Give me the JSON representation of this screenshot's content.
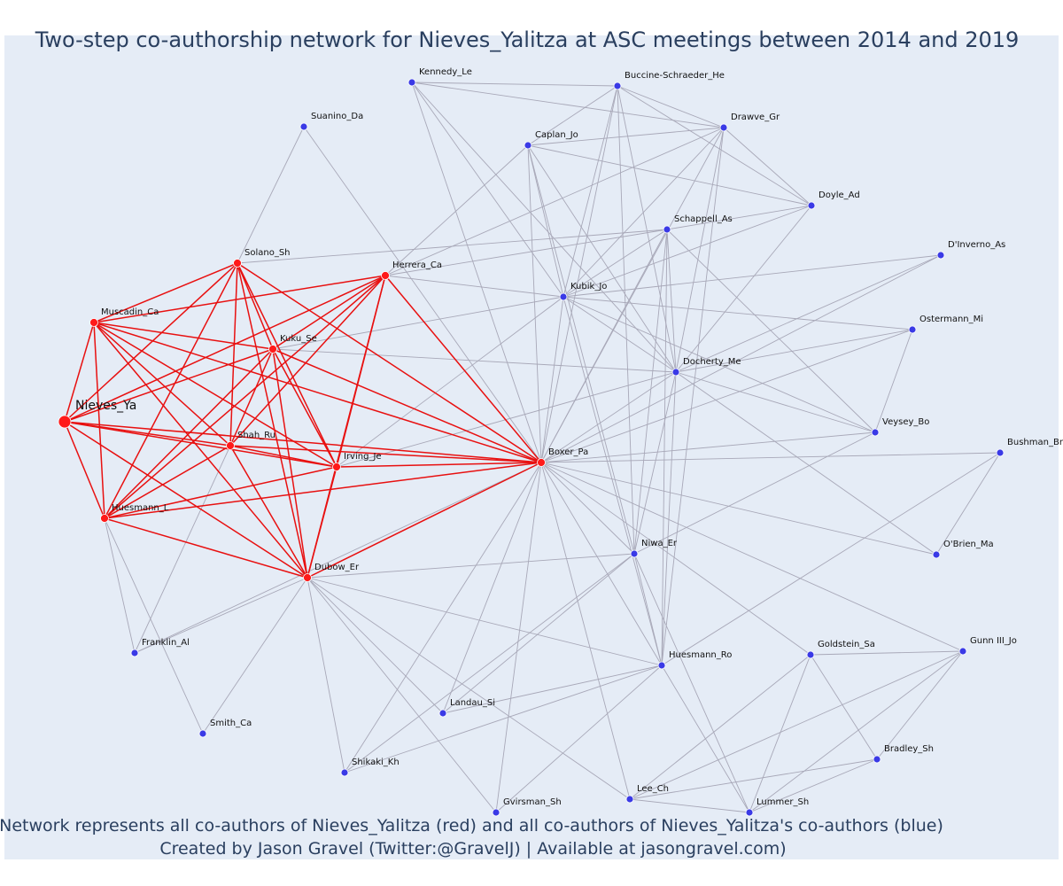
{
  "title": "Two-step co-authorship network for Nieves_Yalitza at ASC meetings between 2014 and 2019",
  "caption_line1": "Network represents all co-authors of Nieves_Yalitza (red) and all co-authors of Nieves_Yalitza's co-authors (blue)",
  "caption_line2": "Created by Jason Gravel (Twitter:@GravelJ) | Available at jasongravel.com)",
  "colors": {
    "background": "#e5ecf6",
    "title": "#2a3f5f",
    "red_node": "#ff1a1a",
    "red_edge": "#e81010",
    "blue_node": "#3a3ae6",
    "gray_edge": "#a8a8b8"
  },
  "focal": "Nieves_Ya",
  "red_nodes": [
    "Nieves_Ya",
    "Solano_Sh",
    "Herrera_Ca",
    "Muscadin_Ca",
    "Kuku_Se",
    "Shah_Ru",
    "Irving_Je",
    "Huesmann_L",
    "Dubow_Er",
    "Boxer_Pa"
  ],
  "blue_nodes": [
    "Kennedy_Le",
    "Buccine-Schraeder_He",
    "Suanino_Da",
    "Caplan_Jo",
    "Drawve_Gr",
    "Doyle_Ad",
    "Schappell_As",
    "D'Inverno_As",
    "Kubik_Jo",
    "Ostermann_Mi",
    "Docherty_Me",
    "Veysey_Bo",
    "Bushman_Br",
    "O'Brien_Ma",
    "Niwa_Er",
    "Goldstein_Sa",
    "Gunn III_Jo",
    "Huesmann_Ro",
    "Franklin_Al",
    "Landau_Si",
    "Smith_Ca",
    "Bradley_Sh",
    "Shikaki_Kh",
    "Lee_Ch",
    "Lummer_Sh",
    "Gvirsman_Sh"
  ],
  "red_edges": [
    [
      "Nieves_Ya",
      "Solano_Sh"
    ],
    [
      "Nieves_Ya",
      "Herrera_Ca"
    ],
    [
      "Nieves_Ya",
      "Muscadin_Ca"
    ],
    [
      "Nieves_Ya",
      "Kuku_Se"
    ],
    [
      "Nieves_Ya",
      "Shah_Ru"
    ],
    [
      "Nieves_Ya",
      "Irving_Je"
    ],
    [
      "Nieves_Ya",
      "Huesmann_L"
    ],
    [
      "Nieves_Ya",
      "Dubow_Er"
    ],
    [
      "Nieves_Ya",
      "Boxer_Pa"
    ],
    [
      "Solano_Sh",
      "Muscadin_Ca"
    ],
    [
      "Solano_Sh",
      "Kuku_Se"
    ],
    [
      "Solano_Sh",
      "Shah_Ru"
    ],
    [
      "Solano_Sh",
      "Irving_Je"
    ],
    [
      "Solano_Sh",
      "Huesmann_L"
    ],
    [
      "Solano_Sh",
      "Dubow_Er"
    ],
    [
      "Solano_Sh",
      "Boxer_Pa"
    ],
    [
      "Herrera_Ca",
      "Muscadin_Ca"
    ],
    [
      "Herrera_Ca",
      "Kuku_Se"
    ],
    [
      "Herrera_Ca",
      "Shah_Ru"
    ],
    [
      "Herrera_Ca",
      "Irving_Je"
    ],
    [
      "Herrera_Ca",
      "Huesmann_L"
    ],
    [
      "Herrera_Ca",
      "Dubow_Er"
    ],
    [
      "Herrera_Ca",
      "Boxer_Pa"
    ],
    [
      "Muscadin_Ca",
      "Kuku_Se"
    ],
    [
      "Muscadin_Ca",
      "Shah_Ru"
    ],
    [
      "Muscadin_Ca",
      "Irving_Je"
    ],
    [
      "Muscadin_Ca",
      "Huesmann_L"
    ],
    [
      "Muscadin_Ca",
      "Dubow_Er"
    ],
    [
      "Muscadin_Ca",
      "Boxer_Pa"
    ],
    [
      "Kuku_Se",
      "Shah_Ru"
    ],
    [
      "Kuku_Se",
      "Irving_Je"
    ],
    [
      "Kuku_Se",
      "Huesmann_L"
    ],
    [
      "Kuku_Se",
      "Dubow_Er"
    ],
    [
      "Kuku_Se",
      "Boxer_Pa"
    ],
    [
      "Shah_Ru",
      "Irving_Je"
    ],
    [
      "Shah_Ru",
      "Huesmann_L"
    ],
    [
      "Shah_Ru",
      "Dubow_Er"
    ],
    [
      "Shah_Ru",
      "Boxer_Pa"
    ],
    [
      "Irving_Je",
      "Huesmann_L"
    ],
    [
      "Irving_Je",
      "Dubow_Er"
    ],
    [
      "Irving_Je",
      "Boxer_Pa"
    ],
    [
      "Huesmann_L",
      "Dubow_Er"
    ],
    [
      "Huesmann_L",
      "Boxer_Pa"
    ],
    [
      "Dubow_Er",
      "Boxer_Pa"
    ]
  ],
  "gray_edges": [
    [
      "Suanino_Da",
      "Solano_Sh"
    ],
    [
      "Suanino_Da",
      "Boxer_Pa"
    ],
    [
      "Solano_Sh",
      "Schappell_As"
    ],
    [
      "Kennedy_Le",
      "Buccine-Schraeder_He"
    ],
    [
      "Kennedy_Le",
      "Drawve_Gr"
    ],
    [
      "Kennedy_Le",
      "Kubik_Jo"
    ],
    [
      "Kennedy_Le",
      "Boxer_Pa"
    ],
    [
      "Kennedy_Le",
      "Docherty_Me"
    ],
    [
      "Buccine-Schraeder_He",
      "Caplan_Jo"
    ],
    [
      "Buccine-Schraeder_He",
      "Drawve_Gr"
    ],
    [
      "Buccine-Schraeder_He",
      "Doyle_Ad"
    ],
    [
      "Buccine-Schraeder_He",
      "Kubik_Jo"
    ],
    [
      "Buccine-Schraeder_He",
      "Boxer_Pa"
    ],
    [
      "Buccine-Schraeder_He",
      "Docherty_Me"
    ],
    [
      "Buccine-Schraeder_He",
      "Niwa_Er"
    ],
    [
      "Caplan_Jo",
      "Drawve_Gr"
    ],
    [
      "Caplan_Jo",
      "Doyle_Ad"
    ],
    [
      "Caplan_Jo",
      "Herrera_Ca"
    ],
    [
      "Caplan_Jo",
      "Kubik_Jo"
    ],
    [
      "Caplan_Jo",
      "Boxer_Pa"
    ],
    [
      "Caplan_Jo",
      "Docherty_Me"
    ],
    [
      "Caplan_Jo",
      "Niwa_Er"
    ],
    [
      "Drawve_Gr",
      "Doyle_Ad"
    ],
    [
      "Drawve_Gr",
      "Herrera_Ca"
    ],
    [
      "Drawve_Gr",
      "Kubik_Jo"
    ],
    [
      "Drawve_Gr",
      "Boxer_Pa"
    ],
    [
      "Drawve_Gr",
      "Docherty_Me"
    ],
    [
      "Drawve_Gr",
      "Huesmann_Ro"
    ],
    [
      "Doyle_Ad",
      "Schappell_As"
    ],
    [
      "Doyle_Ad",
      "Kubik_Jo"
    ],
    [
      "Doyle_Ad",
      "Docherty_Me"
    ],
    [
      "Schappell_As",
      "Herrera_Ca"
    ],
    [
      "Schappell_As",
      "Kubik_Jo"
    ],
    [
      "Schappell_As",
      "Boxer_Pa"
    ],
    [
      "Schappell_As",
      "Docherty_Me"
    ],
    [
      "Schappell_As",
      "Niwa_Er"
    ],
    [
      "Schappell_As",
      "Veysey_Bo"
    ],
    [
      "Schappell_As",
      "Huesmann_Ro"
    ],
    [
      "D'Inverno_As",
      "Kubik_Jo"
    ],
    [
      "D'Inverno_As",
      "Docherty_Me"
    ],
    [
      "D'Inverno_As",
      "Boxer_Pa"
    ],
    [
      "Kubik_Jo",
      "Herrera_Ca"
    ],
    [
      "Kubik_Jo",
      "Kuku_Se"
    ],
    [
      "Kubik_Jo",
      "Irving_Je"
    ],
    [
      "Kubik_Jo",
      "Boxer_Pa"
    ],
    [
      "Kubik_Jo",
      "Docherty_Me"
    ],
    [
      "Kubik_Jo",
      "Ostermann_Mi"
    ],
    [
      "Kubik_Jo",
      "Veysey_Bo"
    ],
    [
      "Kubik_Jo",
      "Huesmann_Ro"
    ],
    [
      "Ostermann_Mi",
      "Docherty_Me"
    ],
    [
      "Ostermann_Mi",
      "Boxer_Pa"
    ],
    [
      "Ostermann_Mi",
      "Veysey_Bo"
    ],
    [
      "Docherty_Me",
      "Kuku_Se"
    ],
    [
      "Docherty_Me",
      "Irving_Je"
    ],
    [
      "Docherty_Me",
      "Boxer_Pa"
    ],
    [
      "Docherty_Me",
      "Veysey_Bo"
    ],
    [
      "Docherty_Me",
      "Niwa_Er"
    ],
    [
      "Docherty_Me",
      "O'Brien_Ma"
    ],
    [
      "Docherty_Me",
      "Huesmann_Ro"
    ],
    [
      "Veysey_Bo",
      "Boxer_Pa"
    ],
    [
      "Veysey_Bo",
      "Niwa_Er"
    ],
    [
      "Bushman_Br",
      "Boxer_Pa"
    ],
    [
      "Bushman_Br",
      "O'Brien_Ma"
    ],
    [
      "Bushman_Br",
      "Huesmann_Ro"
    ],
    [
      "Niwa_Er",
      "Boxer_Pa"
    ],
    [
      "Niwa_Er",
      "Dubow_Er"
    ],
    [
      "Niwa_Er",
      "Huesmann_Ro"
    ],
    [
      "Niwa_Er",
      "Landau_Si"
    ],
    [
      "Niwa_Er",
      "Shikaki_Kh"
    ],
    [
      "Niwa_Er",
      "Lummer_Sh"
    ],
    [
      "Boxer_Pa",
      "Huesmann_Ro"
    ],
    [
      "Boxer_Pa",
      "Goldstein_Sa"
    ],
    [
      "Boxer_Pa",
      "Gunn III_Jo"
    ],
    [
      "Boxer_Pa",
      "Landau_Si"
    ],
    [
      "Boxer_Pa",
      "Shikaki_Kh"
    ],
    [
      "Boxer_Pa",
      "Gvirsman_Sh"
    ],
    [
      "Boxer_Pa",
      "Lee_Ch"
    ],
    [
      "Boxer_Pa",
      "Franklin_Al"
    ],
    [
      "Boxer_Pa",
      "Huesmann_L"
    ],
    [
      "Boxer_Pa",
      "O'Brien_Ma"
    ],
    [
      "Dubow_Er",
      "Huesmann_Ro"
    ],
    [
      "Dubow_Er",
      "Shikaki_Kh"
    ],
    [
      "Dubow_Er",
      "Gvirsman_Sh"
    ],
    [
      "Dubow_Er",
      "Landau_Si"
    ],
    [
      "Dubow_Er",
      "Smith_Ca"
    ],
    [
      "Dubow_Er",
      "Franklin_Al"
    ],
    [
      "Dubow_Er",
      "Lee_Ch"
    ],
    [
      "Huesmann_L",
      "Franklin_Al"
    ],
    [
      "Huesmann_L",
      "Smith_Ca"
    ],
    [
      "Shah_Ru",
      "Franklin_Al"
    ],
    [
      "Huesmann_Ro",
      "Landau_Si"
    ],
    [
      "Huesmann_Ro",
      "Shikaki_Kh"
    ],
    [
      "Huesmann_Ro",
      "Gvirsman_Sh"
    ],
    [
      "Huesmann_Ro",
      "Lummer_Sh"
    ],
    [
      "Goldstein_Sa",
      "Gunn III_Jo"
    ],
    [
      "Goldstein_Sa",
      "Bradley_Sh"
    ],
    [
      "Goldstein_Sa",
      "Lummer_Sh"
    ],
    [
      "Goldstein_Sa",
      "Lee_Ch"
    ],
    [
      "Gunn III_Jo",
      "Bradley_Sh"
    ],
    [
      "Gunn III_Jo",
      "Lee_Ch"
    ],
    [
      "Gunn III_Jo",
      "Lummer_Sh"
    ],
    [
      "Bradley_Sh",
      "Lee_Ch"
    ],
    [
      "Bradley_Sh",
      "Lummer_Sh"
    ],
    [
      "Lee_Ch",
      "Lummer_Sh"
    ]
  ]
}
